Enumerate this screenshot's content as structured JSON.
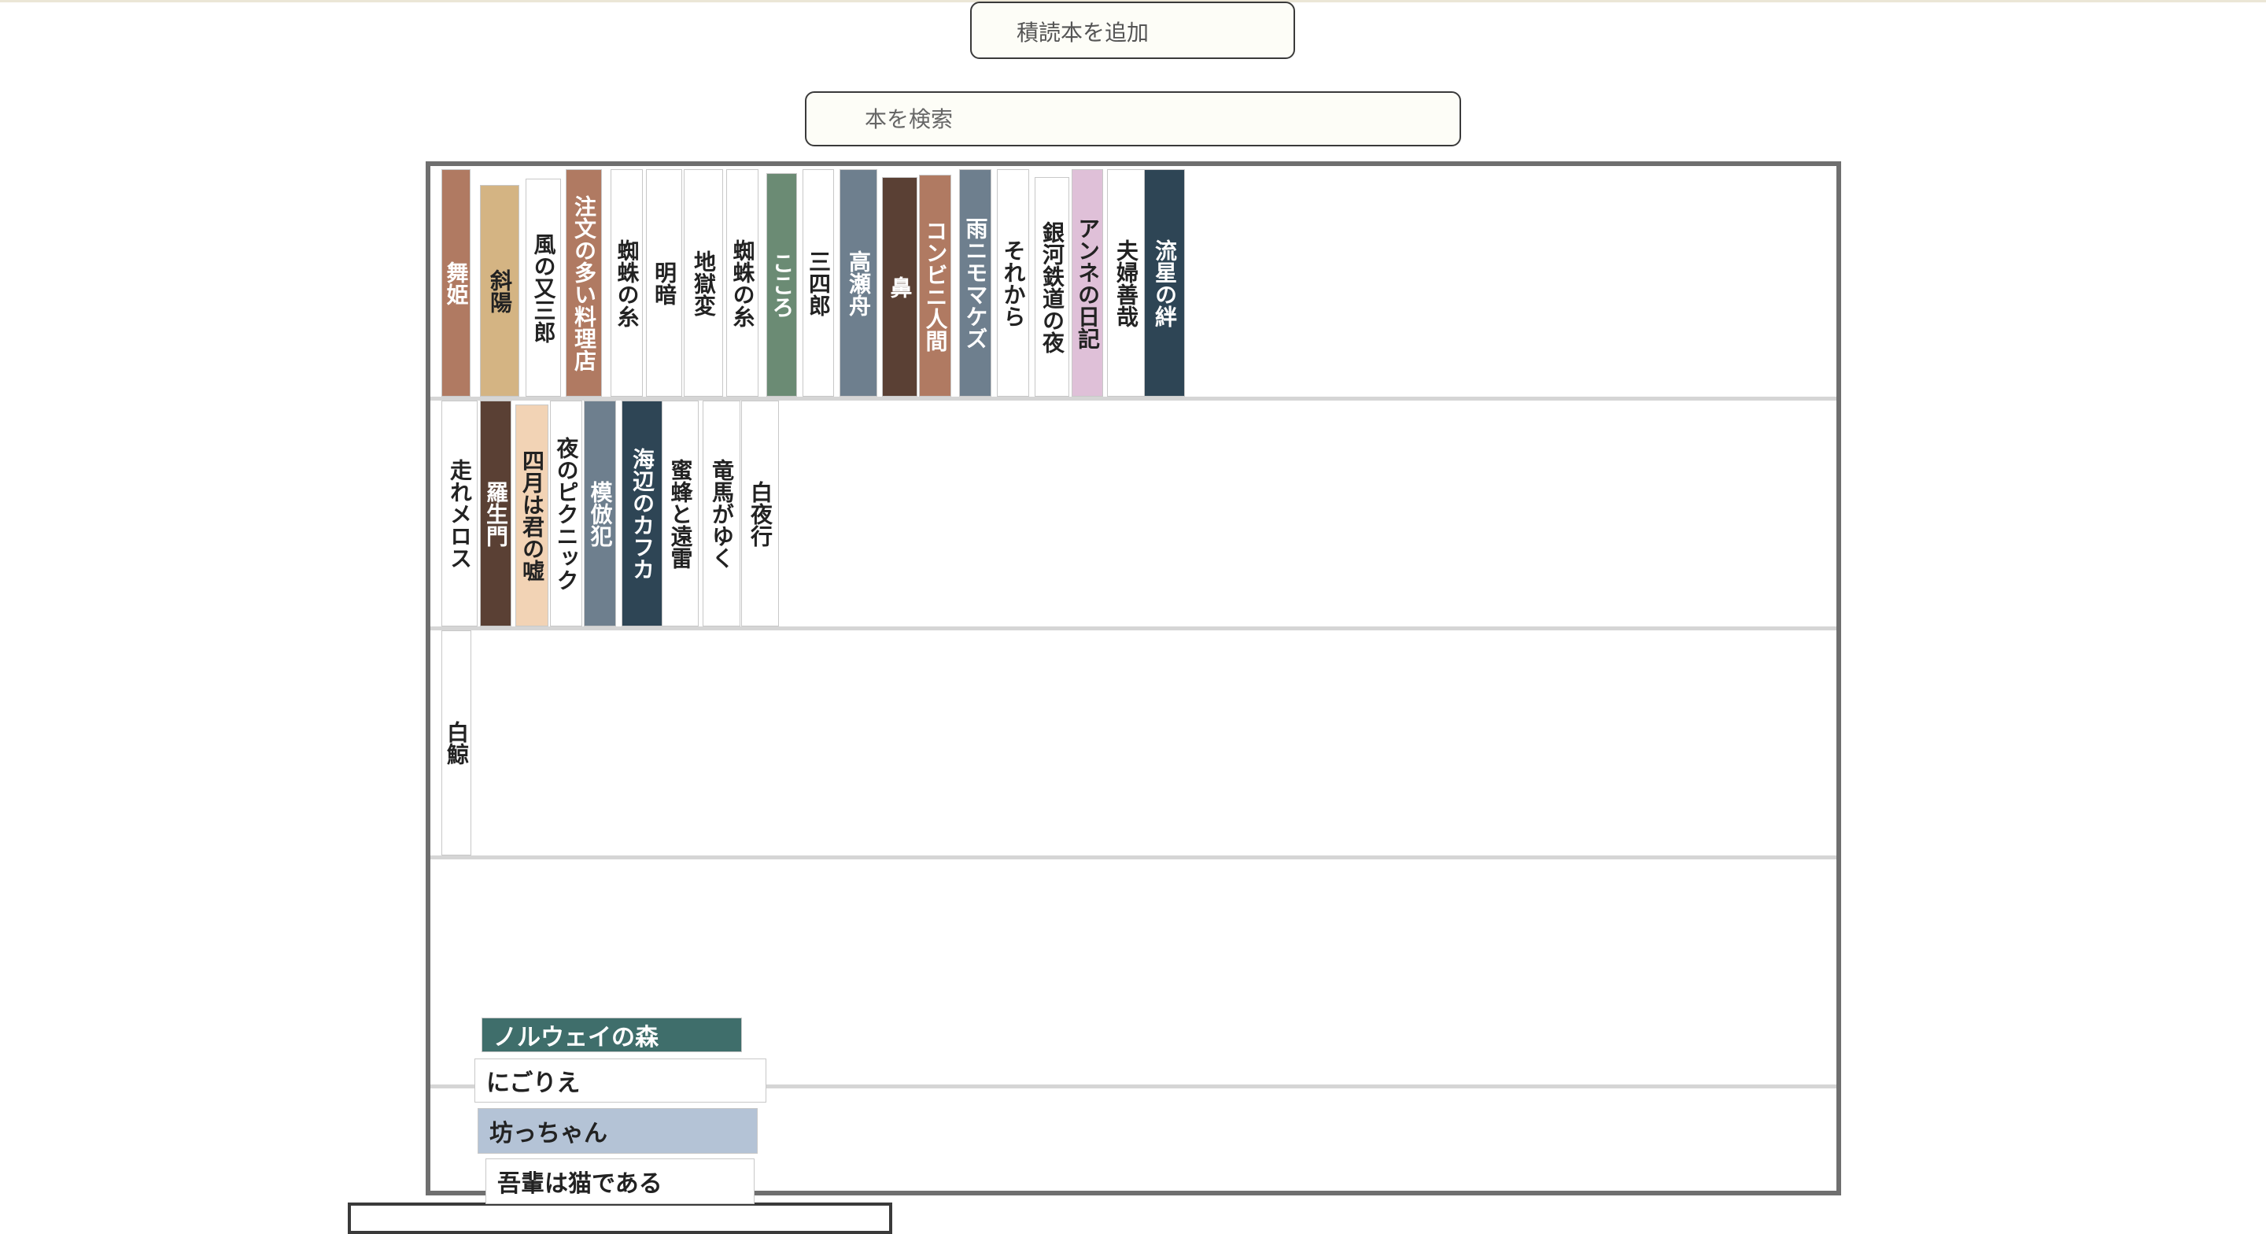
{
  "add_button": {
    "label": "積読本を追加"
  },
  "search": {
    "placeholder": "本を検索"
  },
  "shelves": [
    {
      "books": [
        {
          "title": "舞姫",
          "color": "#b07a62",
          "text_color": "#ffffff"
        },
        {
          "title": "斜陽",
          "color": "#d4b483",
          "text_color": "#222222"
        },
        {
          "title": "風の又三郎",
          "color": "#ffffff",
          "text_color": "#222222"
        },
        {
          "title": "注文の多い料理店",
          "color": "#b07a62",
          "text_color": "#ffffff"
        },
        {
          "title": "蜘蛛の糸",
          "color": "#ffffff",
          "text_color": "#222222"
        },
        {
          "title": "明暗",
          "color": "#ffffff",
          "text_color": "#222222"
        },
        {
          "title": "地獄変",
          "color": "#ffffff",
          "text_color": "#222222"
        },
        {
          "title": "蜘蛛の糸",
          "color": "#ffffff",
          "text_color": "#222222"
        },
        {
          "title": "こころ",
          "color": "#6b8b74",
          "text_color": "#ffffff"
        },
        {
          "title": "三四郎",
          "color": "#ffffff",
          "text_color": "#222222"
        },
        {
          "title": "高瀬舟",
          "color": "#6e7f8e",
          "text_color": "#ffffff"
        },
        {
          "title": "鼻",
          "color": "#5a4034",
          "text_color": "#ffffff"
        },
        {
          "title": "コンビニ人間",
          "color": "#b07a62",
          "text_color": "#ffffff"
        },
        {
          "title": "雨ニモマケズ",
          "color": "#6e7f8e",
          "text_color": "#ffffff"
        },
        {
          "title": "それから",
          "color": "#ffffff",
          "text_color": "#222222"
        },
        {
          "title": "銀河鉄道の夜",
          "color": "#ffffff",
          "text_color": "#222222"
        },
        {
          "title": "アンネの日記",
          "color": "#dfc0d8",
          "text_color": "#222222"
        },
        {
          "title": "夫婦善哉",
          "color": "#ffffff",
          "text_color": "#222222"
        },
        {
          "title": "流星の絆",
          "color": "#2e4555",
          "text_color": "#ffffff"
        }
      ]
    },
    {
      "books": [
        {
          "title": "走れメロス",
          "color": "#ffffff",
          "text_color": "#222222"
        },
        {
          "title": "羅生門",
          "color": "#5a4034",
          "text_color": "#ffffff"
        },
        {
          "title": "四月は君の嘘",
          "color": "#f2d3b5",
          "text_color": "#222222"
        },
        {
          "title": "夜のピクニック",
          "color": "#ffffff",
          "text_color": "#222222"
        },
        {
          "title": "模倣犯",
          "color": "#6e7f8e",
          "text_color": "#ffffff"
        },
        {
          "title": "海辺のカフカ",
          "color": "#2e4555",
          "text_color": "#ffffff"
        },
        {
          "title": "蜜蜂と遠雷",
          "color": "#ffffff",
          "text_color": "#222222"
        },
        {
          "title": "竜馬がゆく",
          "color": "#ffffff",
          "text_color": "#222222"
        },
        {
          "title": "白夜行",
          "color": "#ffffff",
          "text_color": "#222222"
        }
      ]
    },
    {
      "books": [
        {
          "title": "白鯨",
          "color": "#ffffff",
          "text_color": "#222222"
        }
      ]
    }
  ],
  "stacked_books": [
    {
      "title": "ノルウェイの森",
      "color": "#3f6e6b",
      "text_color": "#ffffff"
    },
    {
      "title": "にごりえ",
      "color": "#ffffff",
      "text_color": "#222222"
    },
    {
      "title": "坊っちゃん",
      "color": "#b4c3d6",
      "text_color": "#222222"
    },
    {
      "title": "吾輩は猫である",
      "color": "#ffffff",
      "text_color": "#222222"
    }
  ]
}
